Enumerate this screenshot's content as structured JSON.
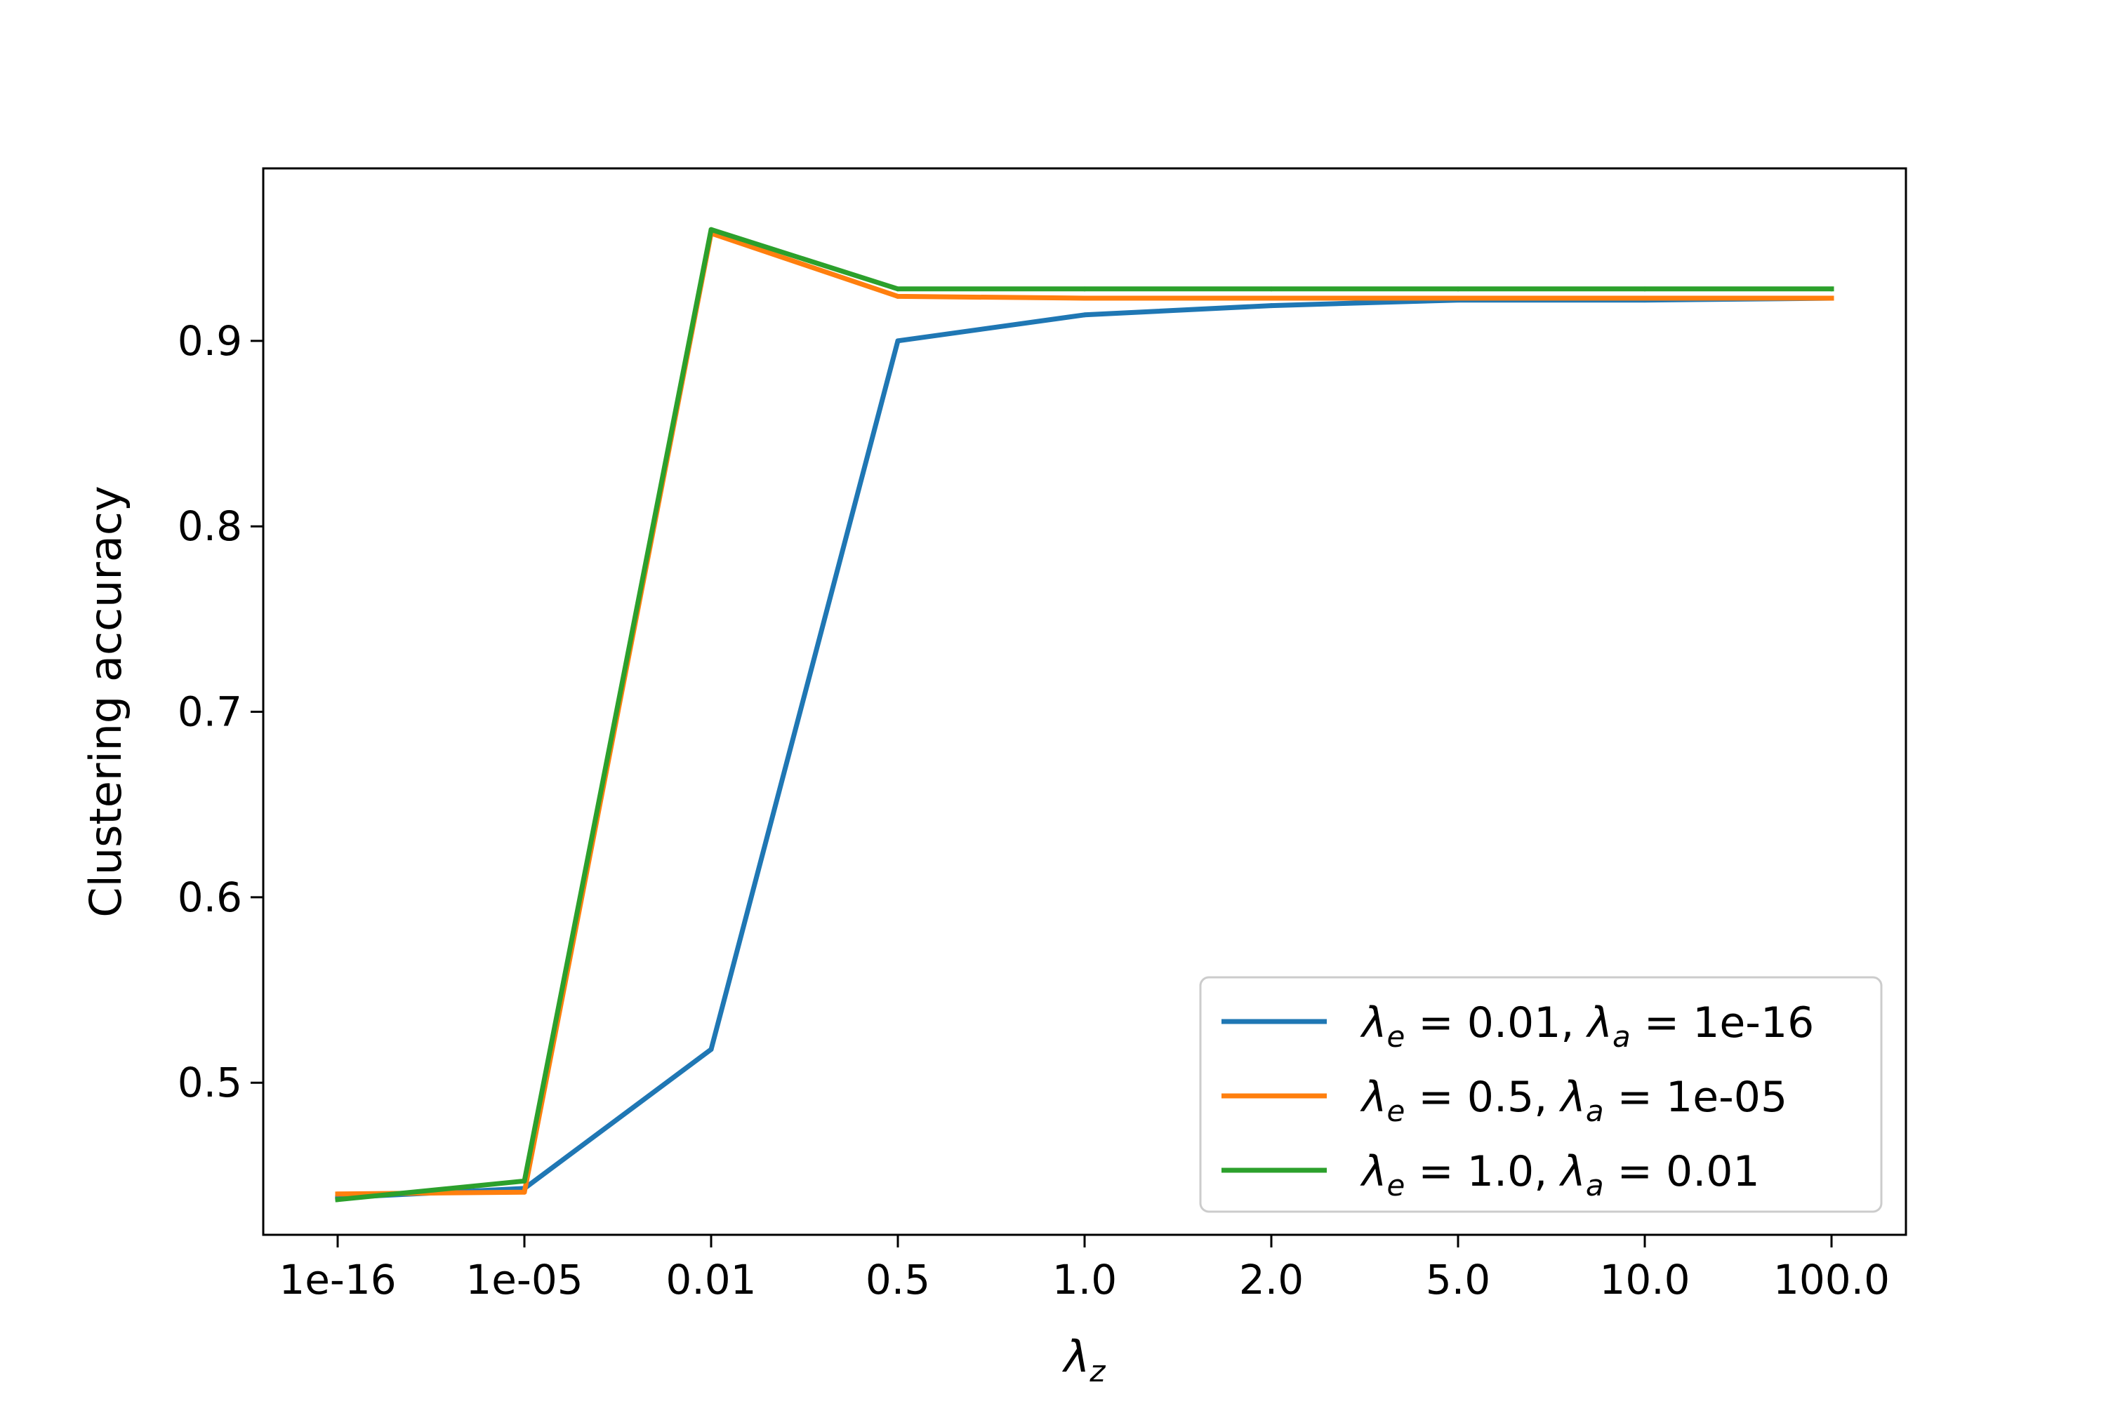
{
  "chart_data": {
    "type": "line",
    "title": "",
    "xlabel": "λ",
    "xlabel_sub": "z",
    "ylabel": "Clustering accuracy",
    "x_categories": [
      "1e-16",
      "1e-05",
      "0.01",
      "0.5",
      "1.0",
      "2.0",
      "5.0",
      "10.0",
      "100.0"
    ],
    "yticks": [
      0.5,
      0.6,
      0.7,
      0.8,
      0.9
    ],
    "ytick_labels": [
      "0.5",
      "0.6",
      "0.7",
      "0.8",
      "0.9"
    ],
    "ylim": [
      0.418,
      0.993
    ],
    "grid": false,
    "legend_position": "lower-right",
    "series": [
      {
        "name": "λe = 0.01, λa = 1e-16",
        "legend": {
          "l1": "λ",
          "s1": "e",
          "v1": " = 0.01, ",
          "l2": "λ",
          "s2": "a",
          "v2": " = 1e-16"
        },
        "color": "#1f77b4",
        "values": [
          0.438,
          0.443,
          0.518,
          0.9,
          0.914,
          0.919,
          0.922,
          0.922,
          0.923
        ]
      },
      {
        "name": "λe = 0.5, λa = 1e-05",
        "legend": {
          "l1": "λ",
          "s1": "e",
          "v1": " = 0.5, ",
          "l2": "λ",
          "s2": "a",
          "v2": " = 1e-05"
        },
        "color": "#ff7f0e",
        "values": [
          0.44,
          0.441,
          0.958,
          0.924,
          0.923,
          0.923,
          0.923,
          0.923,
          0.923
        ]
      },
      {
        "name": "λe = 1.0, λa = 0.01",
        "legend": {
          "l1": "λ",
          "s1": "e",
          "v1": " = 1.0, ",
          "l2": "λ",
          "s2": "a",
          "v2": " = 0.01"
        },
        "color": "#2ca02c",
        "values": [
          0.437,
          0.447,
          0.96,
          0.928,
          0.928,
          0.928,
          0.928,
          0.928,
          0.928
        ]
      }
    ]
  }
}
